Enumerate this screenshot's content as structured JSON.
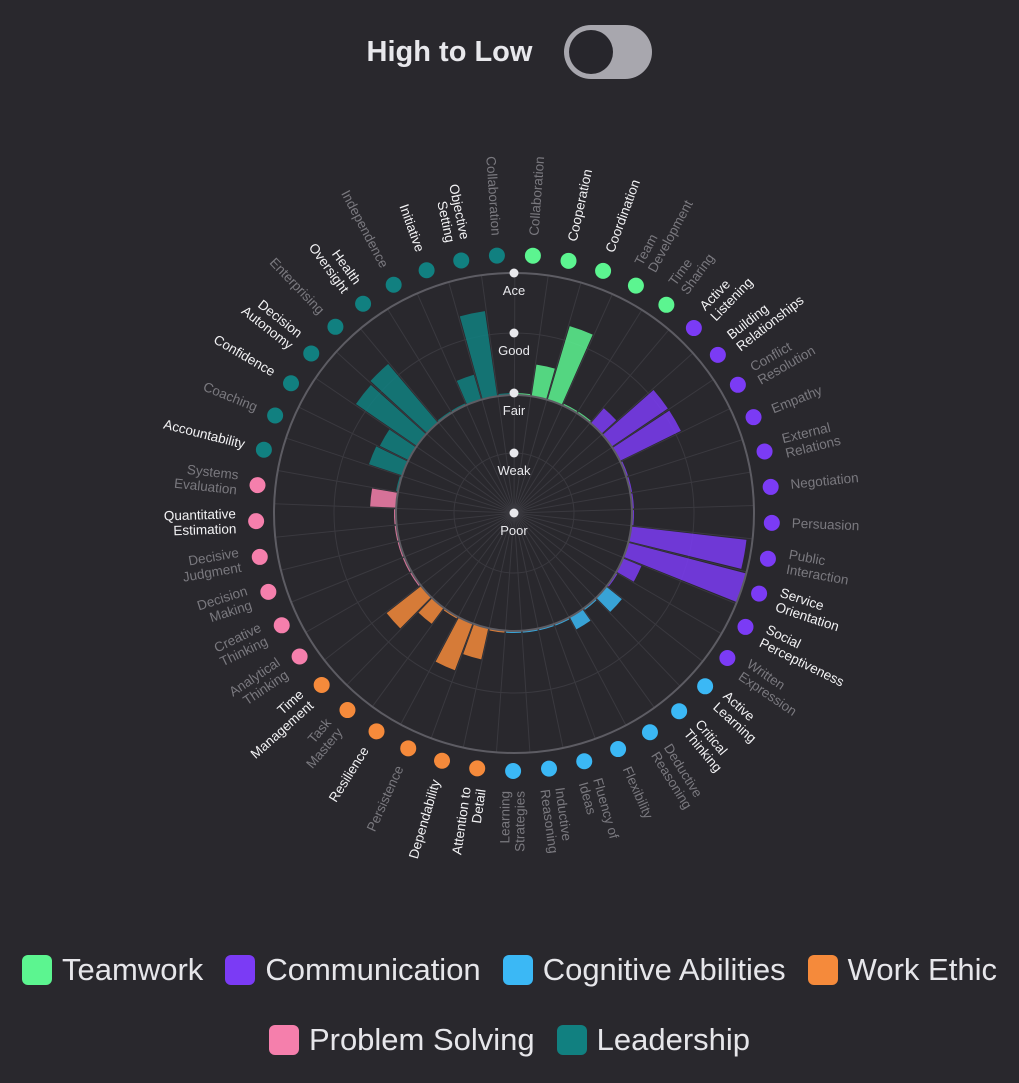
{
  "header": {
    "title": "High to Low",
    "toggle_on": false
  },
  "chart_data": {
    "type": "radial-bar",
    "levels": [
      "Poor",
      "Weak",
      "Fair",
      "Good",
      "Ace"
    ],
    "categories": [
      {
        "name": "Teamwork",
        "color": "#5cf590"
      },
      {
        "name": "Communication",
        "color": "#7b3bf5"
      },
      {
        "name": "Cognitive Abilities",
        "color": "#3bb8f5"
      },
      {
        "name": "Work Ethic",
        "color": "#f58a3b"
      },
      {
        "name": "Problem Solving",
        "color": "#f57fac"
      },
      {
        "name": "Leadership",
        "color": "#118080"
      }
    ],
    "skills": [
      {
        "label": [
          "Collaboration"
        ],
        "group": "Teamwork",
        "value": 2.0,
        "highlight": false
      },
      {
        "label": [
          "Cooperation"
        ],
        "group": "Teamwork",
        "value": 2.5,
        "highlight": true
      },
      {
        "label": [
          "Coordination"
        ],
        "group": "Teamwork",
        "value": 3.25,
        "highlight": true
      },
      {
        "label": [
          "Team",
          "Development"
        ],
        "group": "Teamwork",
        "value": 2.0,
        "highlight": false
      },
      {
        "label": [
          "Time",
          "Sharing"
        ],
        "group": "Teamwork",
        "value": 2.0,
        "highlight": false
      },
      {
        "label": [
          "Active",
          "Listening"
        ],
        "group": "Communication",
        "value": 2.3,
        "highlight": true
      },
      {
        "label": [
          "Building",
          "Relationships"
        ],
        "group": "Communication",
        "value": 3.1,
        "highlight": true
      },
      {
        "label": [
          "Conflict",
          "Resolution"
        ],
        "group": "Communication",
        "value": 3.1,
        "highlight": false
      },
      {
        "label": [
          "Empathy"
        ],
        "group": "Communication",
        "value": 2.0,
        "highlight": false
      },
      {
        "label": [
          "External",
          "Relations"
        ],
        "group": "Communication",
        "value": 2.0,
        "highlight": false
      },
      {
        "label": [
          "Negotiation"
        ],
        "group": "Communication",
        "value": 2.0,
        "highlight": false
      },
      {
        "label": [
          "Persuasion"
        ],
        "group": "Communication",
        "value": 2.0,
        "highlight": false
      },
      {
        "label": [
          "Public",
          "Interaction"
        ],
        "group": "Communication",
        "value": 3.9,
        "highlight": false
      },
      {
        "label": [
          "Service",
          "Orientation"
        ],
        "group": "Communication",
        "value": 4.0,
        "highlight": true
      },
      {
        "label": [
          "Social",
          "Perceptiveness"
        ],
        "group": "Communication",
        "value": 2.3,
        "highlight": true
      },
      {
        "label": [
          "Written",
          "Expression"
        ],
        "group": "Communication",
        "value": 2.0,
        "highlight": false
      },
      {
        "label": [
          "Active",
          "Learning"
        ],
        "group": "Cognitive Abilities",
        "value": 2.3,
        "highlight": true
      },
      {
        "label": [
          "Critical",
          "Thinking"
        ],
        "group": "Cognitive Abilities",
        "value": 2.0,
        "highlight": true
      },
      {
        "label": [
          "Deductive",
          "Reasoning"
        ],
        "group": "Cognitive Abilities",
        "value": 2.2,
        "highlight": false
      },
      {
        "label": [
          "Flexibility"
        ],
        "group": "Cognitive Abilities",
        "value": 2.0,
        "highlight": false
      },
      {
        "label": [
          "Fluency of",
          "Ideas"
        ],
        "group": "Cognitive Abilities",
        "value": 2.0,
        "highlight": false
      },
      {
        "label": [
          "Inductive",
          "Reasoning"
        ],
        "group": "Cognitive Abilities",
        "value": 2.0,
        "highlight": false
      },
      {
        "label": [
          "Learning",
          "Strategies"
        ],
        "group": "Cognitive Abilities",
        "value": 2.0,
        "highlight": false
      },
      {
        "label": [
          "Attention to",
          "Detail"
        ],
        "group": "Work Ethic",
        "value": 2.0,
        "highlight": true
      },
      {
        "label": [
          "Dependability"
        ],
        "group": "Work Ethic",
        "value": 2.5,
        "highlight": true
      },
      {
        "label": [
          "Persistence"
        ],
        "group": "Work Ethic",
        "value": 2.8,
        "highlight": false
      },
      {
        "label": [
          "Resilience"
        ],
        "group": "Work Ethic",
        "value": 2.0,
        "highlight": true
      },
      {
        "label": [
          "Task",
          "Mastery"
        ],
        "group": "Work Ethic",
        "value": 2.3,
        "highlight": false
      },
      {
        "label": [
          "Time",
          "Management"
        ],
        "group": "Work Ethic",
        "value": 2.7,
        "highlight": true
      },
      {
        "label": [
          "Analytical",
          "Thinking"
        ],
        "group": "Problem Solving",
        "value": 2.0,
        "highlight": false
      },
      {
        "label": [
          "Creative",
          "Thinking"
        ],
        "group": "Problem Solving",
        "value": 2.0,
        "highlight": false
      },
      {
        "label": [
          "Decision",
          "Making"
        ],
        "group": "Problem Solving",
        "value": 2.0,
        "highlight": false
      },
      {
        "label": [
          "Decisive",
          "Judgment"
        ],
        "group": "Problem Solving",
        "value": 2.0,
        "highlight": false
      },
      {
        "label": [
          "Quantitative",
          "Estimation"
        ],
        "group": "Problem Solving",
        "value": 2.0,
        "highlight": true
      },
      {
        "label": [
          "Systems",
          "Evaluation"
        ],
        "group": "Problem Solving",
        "value": 2.4,
        "highlight": false
      },
      {
        "label": [
          "Accountability"
        ],
        "group": "Leadership",
        "value": 2.0,
        "highlight": true
      },
      {
        "label": [
          "Coaching"
        ],
        "group": "Leadership",
        "value": 2.55,
        "highlight": false
      },
      {
        "label": [
          "Confidence"
        ],
        "group": "Leadership",
        "value": 2.5,
        "highlight": true
      },
      {
        "label": [
          "Decision",
          "Autonomy"
        ],
        "group": "Leadership",
        "value": 3.2,
        "highlight": true
      },
      {
        "label": [
          "Enterprising"
        ],
        "group": "Leadership",
        "value": 3.25,
        "highlight": false
      },
      {
        "label": [
          "Health",
          "Oversight"
        ],
        "group": "Leadership",
        "value": 2.0,
        "highlight": true
      },
      {
        "label": [
          "Independence"
        ],
        "group": "Leadership",
        "value": 2.0,
        "highlight": false
      },
      {
        "label": [
          "Initiative"
        ],
        "group": "Leadership",
        "value": 2.4,
        "highlight": true
      },
      {
        "label": [
          "Objective",
          "Setting"
        ],
        "group": "Leadership",
        "value": 3.4,
        "highlight": true
      },
      {
        "label": [
          "Collaboration"
        ],
        "group": "Leadership",
        "value": 2.0,
        "highlight": false
      }
    ]
  },
  "legend": [
    {
      "label": "Teamwork",
      "color": "#5cf590"
    },
    {
      "label": "Communication",
      "color": "#7b3bf5"
    },
    {
      "label": "Cognitive Abilities",
      "color": "#3bb8f5"
    },
    {
      "label": "Work Ethic",
      "color": "#f58a3b"
    },
    {
      "label": "Problem Solving",
      "color": "#f57fac"
    },
    {
      "label": "Leadership",
      "color": "#118080"
    }
  ]
}
